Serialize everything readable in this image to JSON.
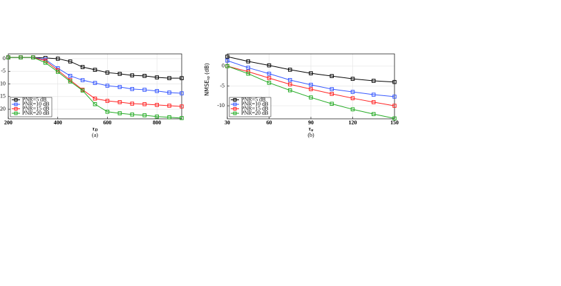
{
  "chart_data": [
    {
      "type": "line",
      "xlabel": "τ",
      "xlabel_subscript": "D",
      "caption": "(a)",
      "x": [
        200,
        250,
        300,
        350,
        400,
        450,
        500,
        550,
        600,
        650,
        700,
        750,
        800,
        850,
        900
      ],
      "xlim": [
        200,
        900
      ],
      "xticks": [
        200,
        400,
        600,
        800
      ],
      "ylim": [
        -23.8,
        1.9
      ],
      "yticks": [
        0,
        -5,
        -10,
        -15,
        -20
      ],
      "grid": true,
      "legend": "lower-left",
      "series": [
        {
          "name": "PNR=5 dB",
          "color": "#000000",
          "values": [
            0.5,
            0.5,
            0.5,
            0.3,
            0,
            -1.1,
            -3.3,
            -4.4,
            -5.5,
            -6,
            -6.6,
            -6.8,
            -7.4,
            -7.7,
            -7.7
          ]
        },
        {
          "name": "PNR=10 dB",
          "color": "#3355ff",
          "values": [
            0.5,
            0.5,
            0.5,
            -0.3,
            -3.8,
            -6.8,
            -8.5,
            -9.6,
            -10.7,
            -11.2,
            -12,
            -12.3,
            -12.8,
            -13.4,
            -13.7
          ]
        },
        {
          "name": "PNR=15 dB",
          "color": "#ff2020",
          "values": [
            0.5,
            0.5,
            0.5,
            -0.8,
            -4.6,
            -8.5,
            -12.3,
            -15.8,
            -16.7,
            -17.2,
            -17.8,
            -18,
            -18.3,
            -18.6,
            -18.9
          ]
        },
        {
          "name": "PNR=20 dB",
          "color": "#22aa22",
          "values": [
            0.5,
            0.5,
            0.5,
            -1.6,
            -5.2,
            -9,
            -12.6,
            -18,
            -21,
            -21.6,
            -22.1,
            -22.4,
            -22.9,
            -23.2,
            -23.5
          ]
        }
      ]
    },
    {
      "type": "line",
      "xlabel": "τ",
      "xlabel_subscript": "u",
      "ylabel": "NMSE",
      "ylabel_subscript": "sp",
      "ylabel_unit": "(dB)",
      "caption": "(b)",
      "x": [
        30,
        45,
        60,
        75,
        90,
        105,
        120,
        135,
        150
      ],
      "xlim": [
        30,
        150
      ],
      "xticks": [
        30,
        60,
        90,
        120,
        150
      ],
      "ylim": [
        -13.3,
        3.1
      ],
      "yticks": [
        0,
        -5,
        -10
      ],
      "grid": true,
      "legend": "lower-left",
      "series": [
        {
          "name": "PNR=5 dB",
          "color": "#000000",
          "values": [
            2.4,
            1.2,
            0.2,
            -0.9,
            -1.8,
            -2.5,
            -3.2,
            -3.7,
            -4.0
          ]
        },
        {
          "name": "PNR=10 dB",
          "color": "#3355ff",
          "values": [
            1.4,
            -0.4,
            -1.9,
            -3.5,
            -4.7,
            -5.8,
            -6.5,
            -7.2,
            -7.7
          ]
        },
        {
          "name": "PNR=15 dB",
          "color": "#ff2020",
          "values": [
            0,
            -1.4,
            -3,
            -4.6,
            -5.8,
            -7,
            -8.1,
            -9.1,
            -10
          ]
        },
        {
          "name": "PNR=20 dB",
          "color": "#22aa22",
          "values": [
            0,
            -1.9,
            -4.2,
            -6.1,
            -7.9,
            -9.5,
            -10.9,
            -12.1,
            -13.2
          ]
        }
      ]
    }
  ]
}
